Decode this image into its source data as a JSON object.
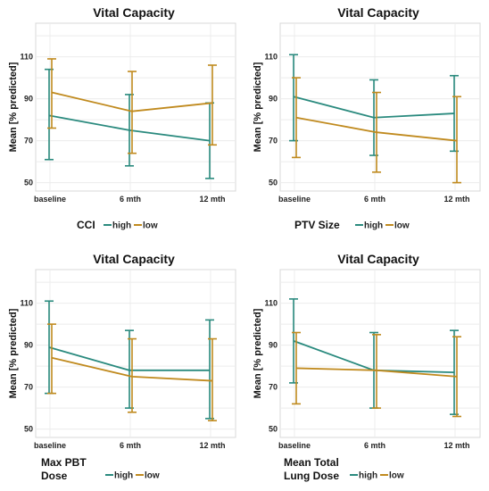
{
  "colors": {
    "high": "#2a8a7e",
    "low": "#c08a1e",
    "grid": "#ececec",
    "panel_border": "#d8d8d8"
  },
  "chart_data": [
    {
      "type": "line",
      "title": "Vital Capacity",
      "ylabel": "Mean [% predicted]",
      "xlabel": "",
      "categories": [
        "baseline",
        "6 mth",
        "12 mth"
      ],
      "ylim": [
        46,
        126
      ],
      "yticks": [
        50,
        70,
        90,
        110
      ],
      "grid": true,
      "legend": {
        "title": "CCI",
        "placement": "bottom"
      },
      "series": [
        {
          "name": "high",
          "color": "#2a8a7e",
          "values": [
            82,
            75,
            70
          ],
          "err_low": [
            61,
            58,
            52
          ],
          "err_high": [
            104,
            92,
            88
          ]
        },
        {
          "name": "low",
          "color": "#c08a1e",
          "values": [
            93,
            84,
            88
          ],
          "err_low": [
            76,
            64,
            68
          ],
          "err_high": [
            109,
            103,
            106
          ]
        }
      ]
    },
    {
      "type": "line",
      "title": "Vital Capacity",
      "ylabel": "Mean [% predicted]",
      "xlabel": "",
      "categories": [
        "baseline",
        "6 mth",
        "12 mth"
      ],
      "ylim": [
        46,
        126
      ],
      "yticks": [
        50,
        70,
        90,
        110
      ],
      "grid": true,
      "legend": {
        "title": "PTV Size",
        "placement": "bottom"
      },
      "series": [
        {
          "name": "high",
          "color": "#2a8a7e",
          "values": [
            91,
            81,
            83
          ],
          "err_low": [
            70,
            63,
            65
          ],
          "err_high": [
            111,
            99,
            101
          ]
        },
        {
          "name": "low",
          "color": "#c08a1e",
          "values": [
            81,
            74,
            70
          ],
          "err_low": [
            62,
            55,
            50
          ],
          "err_high": [
            100,
            93,
            91
          ]
        }
      ]
    },
    {
      "type": "line",
      "title": "Vital Capacity",
      "ylabel": "Mean [% predicted]",
      "xlabel": "",
      "categories": [
        "baseline",
        "6 mth",
        "12 mth"
      ],
      "ylim": [
        46,
        126
      ],
      "yticks": [
        50,
        70,
        90,
        110
      ],
      "grid": true,
      "legend": {
        "title": "Max PBT Dose",
        "placement": "bottom"
      },
      "series": [
        {
          "name": "high",
          "color": "#2a8a7e",
          "values": [
            89,
            78,
            78
          ],
          "err_low": [
            67,
            60,
            55
          ],
          "err_high": [
            111,
            97,
            102
          ]
        },
        {
          "name": "low",
          "color": "#c08a1e",
          "values": [
            84,
            75,
            73
          ],
          "err_low": [
            67,
            58,
            54
          ],
          "err_high": [
            100,
            93,
            93
          ]
        }
      ]
    },
    {
      "type": "line",
      "title": "Vital Capacity",
      "ylabel": "Mean [% predicted]",
      "xlabel": "",
      "categories": [
        "baseline",
        "6 mth",
        "12 mth"
      ],
      "ylim": [
        46,
        126
      ],
      "yticks": [
        50,
        70,
        90,
        110
      ],
      "grid": true,
      "legend": {
        "title": "Mean Total Lung Dose",
        "placement": "bottom"
      },
      "series": [
        {
          "name": "high",
          "color": "#2a8a7e",
          "values": [
            92,
            78,
            77
          ],
          "err_low": [
            72,
            60,
            57
          ],
          "err_high": [
            112,
            96,
            97
          ]
        },
        {
          "name": "low",
          "color": "#c08a1e",
          "values": [
            79,
            78,
            75
          ],
          "err_low": [
            62,
            60,
            56
          ],
          "err_high": [
            96,
            95,
            94
          ]
        }
      ]
    }
  ]
}
